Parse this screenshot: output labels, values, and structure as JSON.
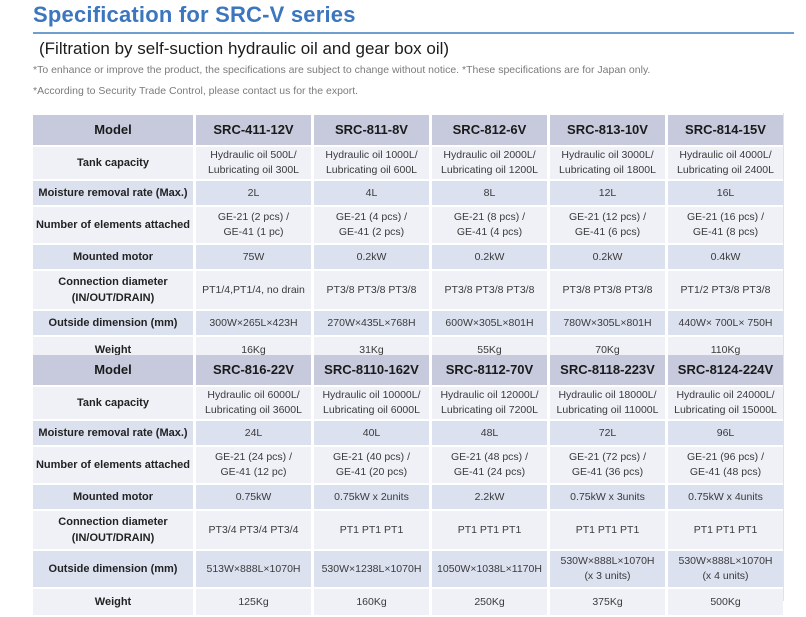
{
  "page": {
    "title": "Specification for SRC-V series",
    "subtitle": "(Filtration by self-suction hydraulic oil and gear box oil)",
    "notes": [
      "*To enhance or improve the product, the specifications are subject to change without notice. *These specifications are for Japan only.",
      "*According to Security Trade Control, please contact us for the export."
    ]
  },
  "colors": {
    "title_blue": "#3b76bf",
    "rule_blue": "#6f9fd0",
    "note_gray": "#7b7b7b",
    "header_row_bg": "#c7cadc",
    "row_blue_bg": "#dce1f0",
    "row_light_bg": "#eff1f7"
  },
  "tables": [
    {
      "header": {
        "label": "Model",
        "models": [
          "SRC-411-12V",
          "SRC-811-8V",
          "SRC-812-6V",
          "SRC-813-10V",
          "SRC-814-15V"
        ]
      },
      "rows": [
        {
          "label": "Tank capacity",
          "values": [
            [
              "Hydraulic oil 500L/",
              "Lubricating oil 300L"
            ],
            [
              "Hydraulic oil 1000L/",
              "Lubricating oil 600L"
            ],
            [
              "Hydraulic oil 2000L/",
              "Lubricating oil 1200L"
            ],
            [
              "Hydraulic oil 3000L/",
              "Lubricating oil 1800L"
            ],
            [
              "Hydraulic oil 4000L/",
              "Lubricating oil 2400L"
            ]
          ]
        },
        {
          "label": "Moisture removal rate (Max.)",
          "values": [
            "2L",
            "4L",
            "8L",
            "12L",
            "16L"
          ]
        },
        {
          "label": "Number of elements attached",
          "values": [
            [
              "GE-21 (2 pcs) /",
              "GE-41 (1 pc)"
            ],
            [
              "GE-21 (4 pcs) /",
              "GE-41 (2 pcs)"
            ],
            [
              "GE-21 (8 pcs) /",
              "GE-41 (4 pcs)"
            ],
            [
              "GE-21 (12 pcs) /",
              "GE-41 (6 pcs)"
            ],
            [
              "GE-21 (16 pcs) /",
              "GE-41 (8 pcs)"
            ]
          ]
        },
        {
          "label": "Mounted motor",
          "values": [
            "75W",
            "0.2kW",
            "0.2kW",
            "0.2kW",
            "0.4kW"
          ]
        },
        {
          "label": [
            "Connection diameter",
            "(IN/OUT/DRAIN)"
          ],
          "values": [
            "PT1/4,PT1/4, no drain",
            "PT3/8 PT3/8 PT3/8",
            "PT3/8 PT3/8 PT3/8",
            "PT3/8 PT3/8 PT3/8",
            "PT1/2 PT3/8 PT3/8"
          ]
        },
        {
          "label": "Outside dimension (mm)",
          "values": [
            "300W×265L×423H",
            "270W×435L×768H",
            "600W×305L×801H",
            "780W×305L×801H",
            "440W× 700L× 750H"
          ]
        },
        {
          "label": "Weight",
          "values": [
            "16Kg",
            "31Kg",
            "55Kg",
            "70Kg",
            "110Kg"
          ]
        }
      ]
    },
    {
      "header": {
        "label": "Model",
        "models": [
          "SRC-816-22V",
          "SRC-8110-162V",
          "SRC-8112-70V",
          "SRC-8118-223V",
          "SRC-8124-224V"
        ]
      },
      "rows": [
        {
          "label": "Tank capacity",
          "values": [
            [
              "Hydraulic oil 6000L/",
              "Lubricating oil 3600L"
            ],
            [
              "Hydraulic oil 10000L/",
              "Lubricating oil 6000L"
            ],
            [
              "Hydraulic oil 12000L/",
              "Lubricating oil 7200L"
            ],
            [
              "Hydraulic oil 18000L/",
              "Lubricating oil 11000L"
            ],
            [
              "Hydraulic oil 24000L/",
              "Lubricating oil 15000L"
            ]
          ]
        },
        {
          "label": "Moisture removal rate (Max.)",
          "values": [
            "24L",
            "40L",
            "48L",
            "72L",
            "96L"
          ]
        },
        {
          "label": "Number of elements attached",
          "values": [
            [
              "GE-21 (24 pcs) /",
              "GE-41 (12 pc)"
            ],
            [
              "GE-21 (40 pcs) /",
              "GE-41 (20 pcs)"
            ],
            [
              "GE-21 (48 pcs) /",
              "GE-41 (24 pcs)"
            ],
            [
              "GE-21 (72 pcs) /",
              "GE-41 (36 pcs)"
            ],
            [
              "GE-21 (96 pcs) /",
              "GE-41 (48 pcs)"
            ]
          ]
        },
        {
          "label": "Mounted motor",
          "values": [
            "0.75kW",
            "0.75kW x 2units",
            "2.2kW",
            "0.75kW x 3units",
            "0.75kW x 4units"
          ]
        },
        {
          "label": [
            "Connection diameter",
            "(IN/OUT/DRAIN)"
          ],
          "values": [
            "PT3/4 PT3/4 PT3/4",
            "PT1 PT1 PT1",
            "PT1 PT1 PT1",
            "PT1 PT1 PT1",
            "PT1 PT1 PT1"
          ]
        },
        {
          "label": "Outside dimension (mm)",
          "values": [
            "513W×888L×1070H",
            "530W×1238L×1070H",
            "1050W×1038L×1170H",
            [
              "530W×888L×1070H",
              "(x 3 units)"
            ],
            [
              "530W×888L×1070H",
              "(x 4 units)"
            ]
          ]
        },
        {
          "label": "Weight",
          "values": [
            "125Kg",
            "160Kg",
            "250Kg",
            "375Kg",
            "500Kg"
          ]
        }
      ]
    }
  ]
}
